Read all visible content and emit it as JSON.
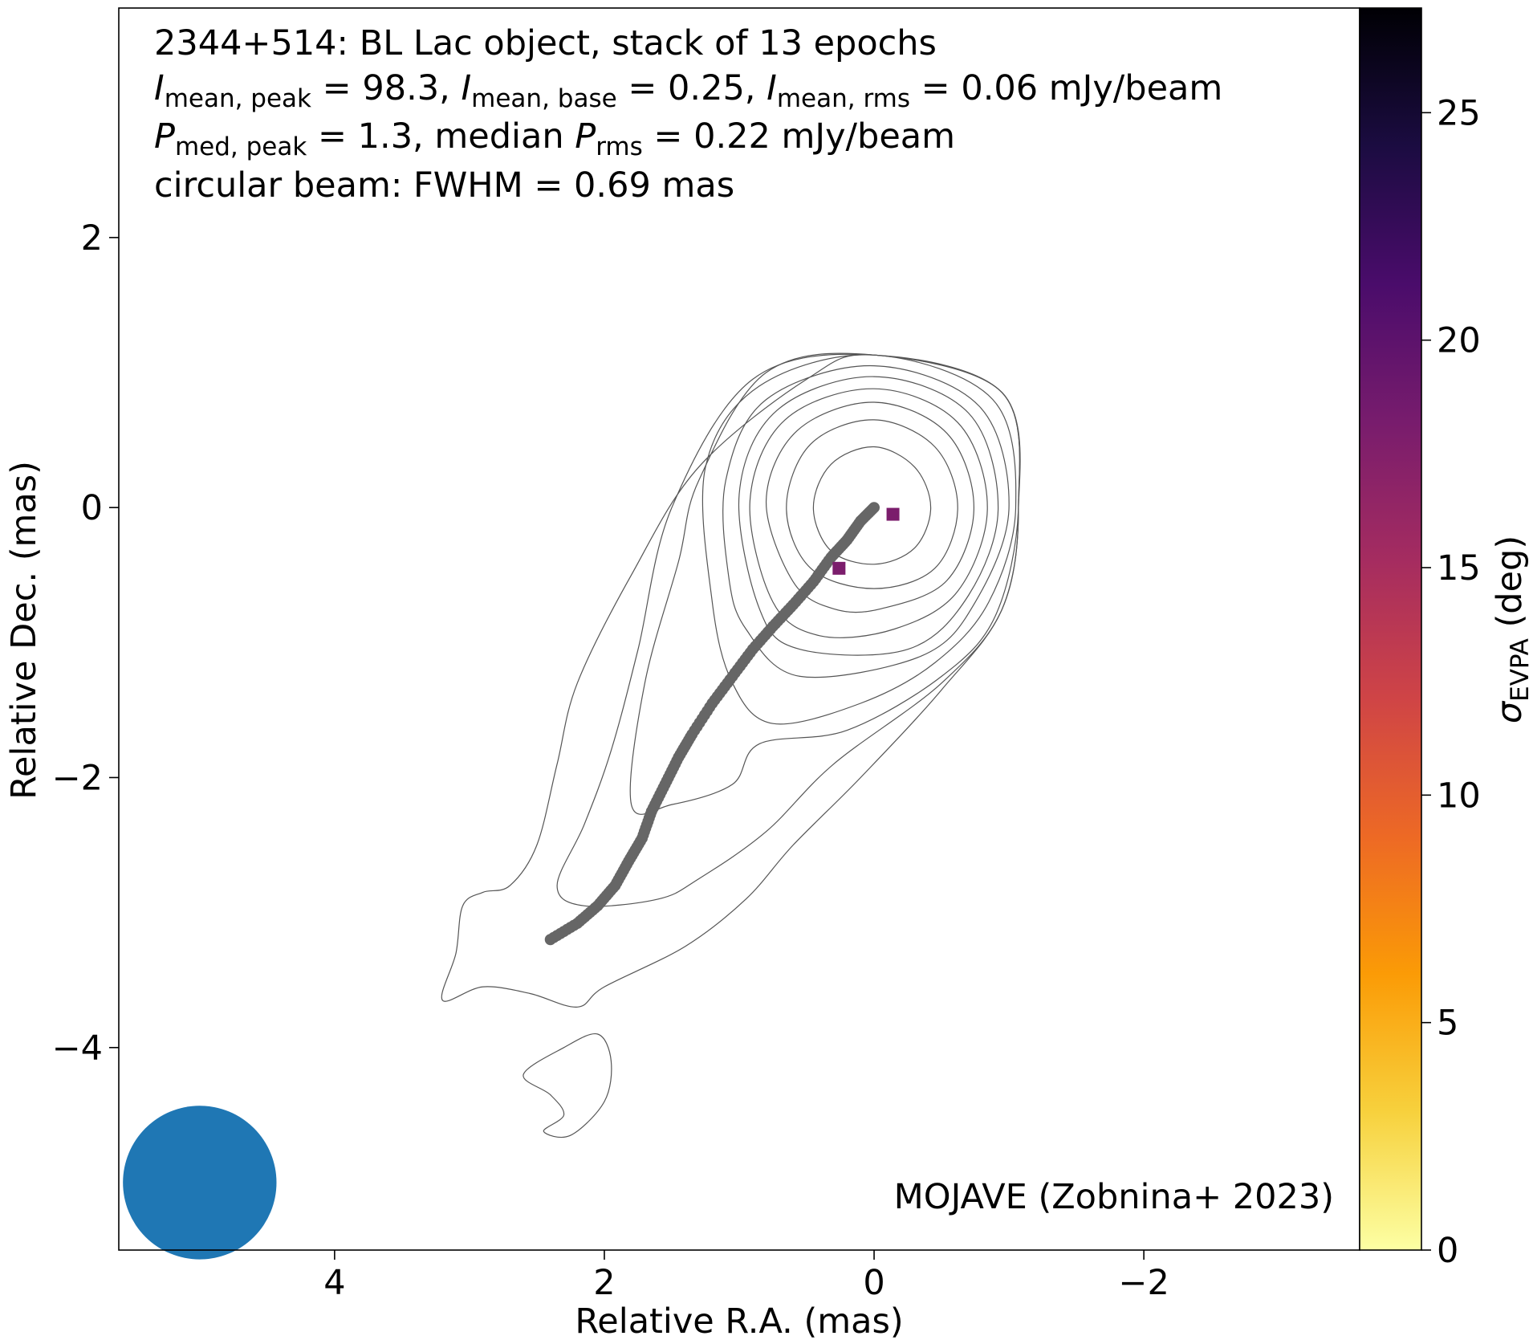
{
  "chart_data": {
    "type": "scatter",
    "title_lines": {
      "line1": "2344+514: BL Lac object, stack of 13 epochs",
      "line2": {
        "a_sym": "I",
        "a_sub": "mean, peak",
        "a_val": " = 98.3, ",
        "b_sym": "I",
        "b_sub": "mean, base",
        "b_val": " = 0.25, ",
        "c_sym": "I",
        "c_sub": "mean, rms",
        "c_val": " = 0.06 mJy/beam"
      },
      "line3": {
        "a_sym": "P",
        "a_sub": "med, peak",
        "a_val": " = 1.3, median ",
        "b_sym": "P",
        "b_sub": "rms",
        "b_val": " = 0.22 mJy/beam"
      },
      "line4": "circular beam: FWHM = 0.69 mas"
    },
    "xlabel": "Relative R.A. (mas)",
    "ylabel": "Relative Dec. (mas)",
    "xlim": [
      5.6,
      -3.6
    ],
    "ylim": [
      -5.5,
      3.7
    ],
    "xticks": [
      4,
      2,
      0,
      -2
    ],
    "xtick_labels": [
      "4",
      "2",
      "0",
      "−2"
    ],
    "yticks": [
      2,
      0,
      -2,
      -4
    ],
    "ytick_labels": [
      "2",
      "0",
      "−2",
      "−4"
    ],
    "annotation": "MOJAVE (Zobnina+ 2023)",
    "beam": {
      "center": [
        5.0,
        -5.0
      ],
      "fwhm_mas": 0.69,
      "color": "#1f77b4"
    },
    "ridgeline": {
      "color": "#666666",
      "points": [
        [
          0.0,
          0.0
        ],
        [
          0.1,
          -0.1
        ],
        [
          0.2,
          -0.24
        ],
        [
          0.32,
          -0.37
        ],
        [
          0.45,
          -0.55
        ],
        [
          0.6,
          -0.72
        ],
        [
          0.75,
          -0.88
        ],
        [
          0.9,
          -1.05
        ],
        [
          1.05,
          -1.25
        ],
        [
          1.2,
          -1.45
        ],
        [
          1.35,
          -1.68
        ],
        [
          1.45,
          -1.85
        ],
        [
          1.55,
          -2.05
        ],
        [
          1.65,
          -2.25
        ],
        [
          1.72,
          -2.45
        ],
        [
          1.82,
          -2.62
        ],
        [
          1.92,
          -2.8
        ],
        [
          2.05,
          -2.95
        ],
        [
          2.2,
          -3.08
        ],
        [
          2.4,
          -3.2
        ]
      ]
    },
    "evpa_points": [
      {
        "x": -0.14,
        "y": -0.05,
        "sigma_evpa_deg": 18
      },
      {
        "x": 0.26,
        "y": -0.45,
        "sigma_evpa_deg": 18
      }
    ],
    "contours": [
      [
        [
          0.45,
          0.0
        ],
        [
          0.32,
          0.32
        ],
        [
          0.0,
          0.45
        ],
        [
          -0.3,
          0.3
        ],
        [
          -0.42,
          0.0
        ],
        [
          -0.3,
          -0.3
        ],
        [
          0.0,
          -0.42
        ],
        [
          0.32,
          -0.32
        ]
      ],
      [
        [
          0.65,
          0.0
        ],
        [
          0.47,
          0.47
        ],
        [
          0.0,
          0.65
        ],
        [
          -0.45,
          0.45
        ],
        [
          -0.62,
          0.0
        ],
        [
          -0.45,
          -0.45
        ],
        [
          0.0,
          -0.6
        ],
        [
          0.47,
          -0.45
        ]
      ],
      [
        [
          0.8,
          0.05
        ],
        [
          0.57,
          0.57
        ],
        [
          0.0,
          0.78
        ],
        [
          -0.54,
          0.55
        ],
        [
          -0.74,
          0.0
        ],
        [
          -0.54,
          -0.54
        ],
        [
          -0.05,
          -0.75
        ],
        [
          0.3,
          -0.75
        ],
        [
          0.6,
          -0.55
        ]
      ],
      [
        [
          0.92,
          0.05
        ],
        [
          0.66,
          0.65
        ],
        [
          0.0,
          0.88
        ],
        [
          -0.62,
          0.63
        ],
        [
          -0.84,
          0.0
        ],
        [
          -0.62,
          -0.62
        ],
        [
          -0.15,
          -0.9
        ],
        [
          0.4,
          -0.95
        ],
        [
          0.75,
          -0.7
        ]
      ],
      [
        [
          1.0,
          0.1
        ],
        [
          0.72,
          0.72
        ],
        [
          0.0,
          0.97
        ],
        [
          -0.7,
          0.7
        ],
        [
          -0.92,
          0.0
        ],
        [
          -0.7,
          -0.65
        ],
        [
          -0.25,
          -1.05
        ],
        [
          0.55,
          -1.05
        ],
        [
          0.85,
          -0.75
        ]
      ],
      [
        [
          1.1,
          0.2
        ],
        [
          0.8,
          0.8
        ],
        [
          0.0,
          1.05
        ],
        [
          -0.78,
          0.75
        ],
        [
          -1.0,
          0.0
        ],
        [
          -0.75,
          -0.7
        ],
        [
          -0.35,
          -1.1
        ],
        [
          0.55,
          -1.25
        ],
        [
          0.95,
          -0.9
        ],
        [
          1.08,
          -0.5
        ]
      ],
      [
        [
          1.25,
          0.3
        ],
        [
          0.85,
          0.9
        ],
        [
          0.0,
          1.13
        ],
        [
          -0.88,
          0.8
        ],
        [
          -1.05,
          0.0
        ],
        [
          -0.85,
          -0.7
        ],
        [
          -0.45,
          -1.15
        ],
        [
          0.1,
          -1.45
        ],
        [
          0.75,
          -1.6
        ],
        [
          1.05,
          -1.3
        ],
        [
          1.2,
          -0.7
        ]
      ],
      [
        [
          1.3,
          0.2
        ],
        [
          0.8,
          1.0
        ],
        [
          0.0,
          1.13
        ],
        [
          -0.95,
          0.85
        ],
        [
          -1.07,
          0.0
        ],
        [
          -0.9,
          -0.8
        ],
        [
          -0.5,
          -1.25
        ],
        [
          0.2,
          -1.65
        ],
        [
          0.85,
          -1.75
        ],
        [
          1.05,
          -2.05
        ],
        [
          1.5,
          -2.2
        ],
        [
          1.8,
          -2.2
        ],
        [
          1.7,
          -1.3
        ],
        [
          1.45,
          -0.4
        ]
      ],
      [
        [
          1.5,
          0.0
        ],
        [
          0.9,
          0.95
        ],
        [
          0.0,
          1.13
        ],
        [
          -0.95,
          0.85
        ],
        [
          -1.07,
          0.0
        ],
        [
          -0.95,
          -0.75
        ],
        [
          -0.5,
          -1.3
        ],
        [
          0.3,
          -1.9
        ],
        [
          0.8,
          -2.4
        ],
        [
          1.3,
          -2.75
        ],
        [
          1.6,
          -2.9
        ],
        [
          2.15,
          -2.95
        ],
        [
          2.35,
          -2.8
        ],
        [
          2.15,
          -2.35
        ],
        [
          1.95,
          -1.8
        ],
        [
          1.75,
          -1.05
        ]
      ],
      [
        [
          1.8,
          -0.5
        ],
        [
          1.3,
          0.3
        ],
        [
          0.5,
          0.95
        ],
        [
          0.0,
          1.13
        ],
        [
          -0.95,
          0.85
        ],
        [
          -1.07,
          0.0
        ],
        [
          -0.95,
          -0.75
        ],
        [
          -0.5,
          -1.35
        ],
        [
          0.1,
          -2.0
        ],
        [
          0.6,
          -2.5
        ],
        [
          0.95,
          -2.9
        ],
        [
          1.4,
          -3.25
        ],
        [
          2.0,
          -3.55
        ],
        [
          2.2,
          -3.7
        ],
        [
          2.55,
          -3.6
        ],
        [
          2.9,
          -3.55
        ],
        [
          3.2,
          -3.65
        ],
        [
          3.1,
          -3.3
        ],
        [
          3.05,
          -2.95
        ],
        [
          2.9,
          -2.85
        ],
        [
          2.7,
          -2.8
        ],
        [
          2.5,
          -2.5
        ],
        [
          2.35,
          -1.9
        ],
        [
          2.2,
          -1.3
        ]
      ]
    ],
    "island_contour": [
      [
        2.6,
        -4.2
      ],
      [
        2.4,
        -4.35
      ],
      [
        2.3,
        -4.5
      ],
      [
        2.45,
        -4.62
      ],
      [
        2.25,
        -4.65
      ],
      [
        2.0,
        -4.4
      ],
      [
        1.95,
        -4.1
      ],
      [
        2.05,
        -3.9
      ],
      [
        2.3,
        -4.0
      ]
    ],
    "colorbar": {
      "label_sym": "σ",
      "label_sub": "EVPA",
      "label_rest": " (deg)",
      "vmin": 0,
      "vmax": 27.3,
      "ticks": [
        0,
        5,
        10,
        15,
        20,
        25
      ],
      "tick_labels": [
        "0",
        "5",
        "10",
        "15",
        "20",
        "25"
      ],
      "colormap_stops": [
        "#fcffa4",
        "#f7d13d",
        "#fb9b06",
        "#ed6925",
        "#cf4446",
        "#a52c60",
        "#781c6d",
        "#4a0c6b",
        "#1b0c41",
        "#000004"
      ]
    }
  }
}
